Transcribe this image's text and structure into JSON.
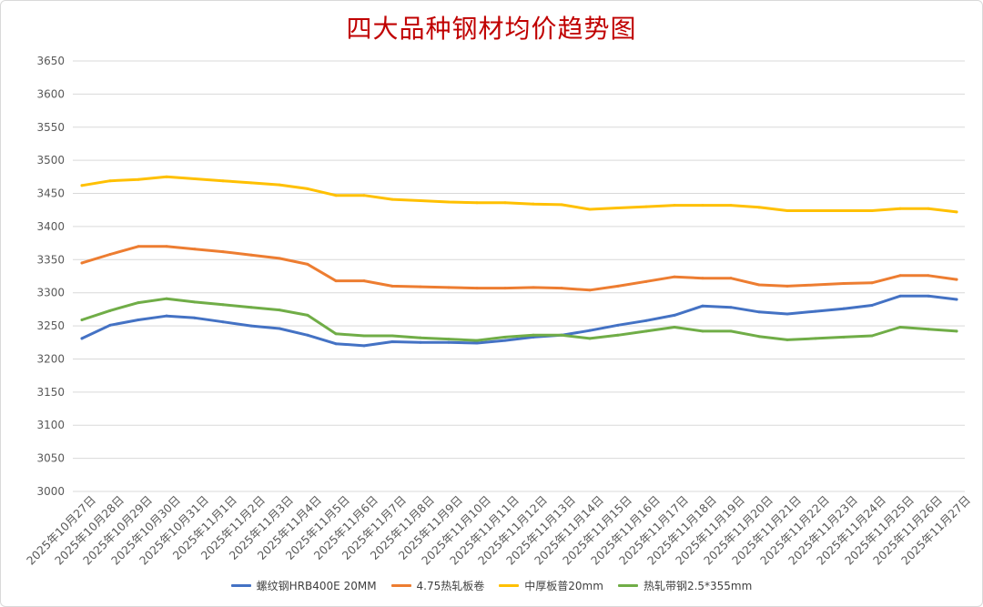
{
  "chart_data": {
    "type": "line",
    "title": "四大品种钢材均价趋势图",
    "xlabel": "",
    "ylabel": "",
    "ylim": [
      3000,
      3650
    ],
    "yticks": [
      3000,
      3050,
      3100,
      3150,
      3200,
      3250,
      3300,
      3350,
      3400,
      3450,
      3500,
      3550,
      3600,
      3650
    ],
    "grid": "horizontal",
    "legend_position": "bottom",
    "categories": [
      "2025年10月27日",
      "2025年10月28日",
      "2025年10月29日",
      "2025年10月30日",
      "2025年10月31日",
      "2025年11月1日",
      "2025年11月2日",
      "2025年11月3日",
      "2025年11月4日",
      "2025年11月5日",
      "2025年11月6日",
      "2025年11月7日",
      "2025年11月8日",
      "2025年11月9日",
      "2025年11月10日",
      "2025年11月11日",
      "2025年11月12日",
      "2025年11月13日",
      "2025年11月14日",
      "2025年11月15日",
      "2025年11月16日",
      "2025年11月17日",
      "2025年11月18日",
      "2025年11月19日",
      "2025年11月20日",
      "2025年11月21日",
      "2025年11月22日",
      "2025年11月23日",
      "2025年11月24日",
      "2025年11月25日",
      "2025年11月26日",
      "2025年11月27日"
    ],
    "series": [
      {
        "name": "螺纹钢HRB400E 20MM",
        "color": "#4472c4",
        "values": [
          3231,
          3251,
          3259,
          3265,
          3262,
          3256,
          3250,
          3246,
          3236,
          3223,
          3220,
          3226,
          3225,
          3225,
          3224,
          3228,
          3233,
          3236,
          3243,
          3251,
          3258,
          3266,
          3280,
          3278,
          3271,
          3268,
          3272,
          3276,
          3281,
          3295,
          3295,
          3290
        ]
      },
      {
        "name": "4.75热轧板卷",
        "color": "#ed7d31",
        "values": [
          3345,
          3358,
          3370,
          3370,
          3366,
          3362,
          3357,
          3352,
          3343,
          3318,
          3318,
          3310,
          3309,
          3308,
          3307,
          3307,
          3308,
          3307,
          3304,
          3310,
          3317,
          3324,
          3322,
          3322,
          3312,
          3310,
          3312,
          3314,
          3315,
          3326,
          3326,
          3320
        ]
      },
      {
        "name": "中厚板普20mm",
        "color": "#ffc000",
        "values": [
          3462,
          3469,
          3471,
          3475,
          3472,
          3469,
          3466,
          3463,
          3457,
          3447,
          3447,
          3441,
          3439,
          3437,
          3436,
          3436,
          3434,
          3433,
          3426,
          3428,
          3430,
          3432,
          3432,
          3432,
          3429,
          3424,
          3424,
          3424,
          3424,
          3427,
          3427,
          3422
        ]
      },
      {
        "name": "热轧带钢2.5*355mm",
        "color": "#70ad47",
        "values": [
          3259,
          3273,
          3285,
          3291,
          3286,
          3282,
          3278,
          3274,
          3266,
          3238,
          3235,
          3235,
          3232,
          3230,
          3228,
          3233,
          3236,
          3236,
          3231,
          3236,
          3242,
          3248,
          3242,
          3242,
          3234,
          3229,
          3231,
          3233,
          3235,
          3248,
          3245,
          3242
        ]
      }
    ]
  }
}
